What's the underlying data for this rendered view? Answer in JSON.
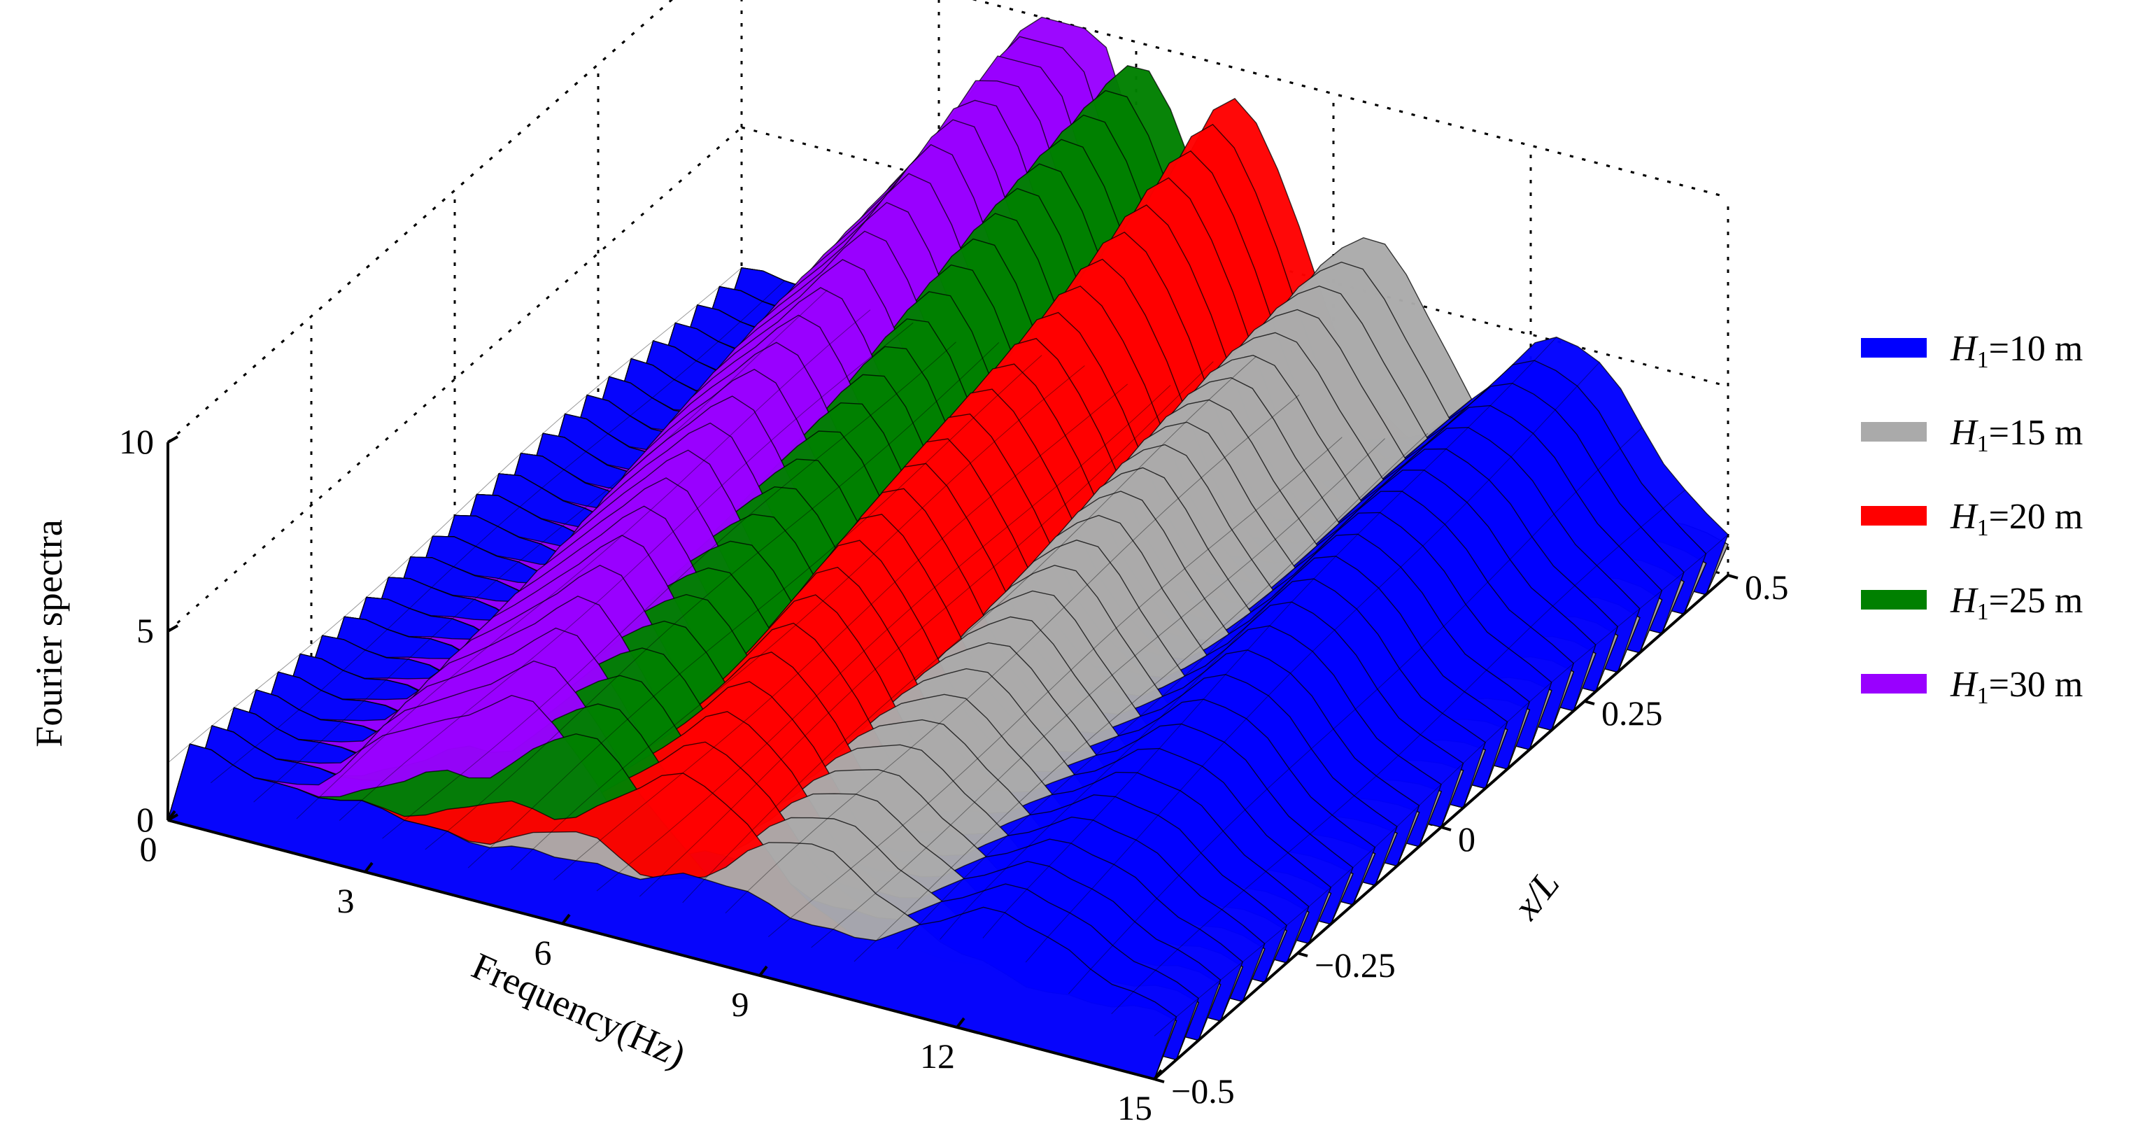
{
  "chart_data": {
    "type": "surface3d",
    "zlabel": "Fourier spectra",
    "xlabel": "Frequency(Hz)",
    "ylabel": "x/L",
    "x_range": [
      0,
      15
    ],
    "y_range": [
      -0.5,
      0.5
    ],
    "z_range": [
      0,
      10
    ],
    "x_ticks": [
      "0",
      "3",
      "6",
      "9",
      "12",
      "15"
    ],
    "y_ticks": [
      "−0.5",
      "−0.25",
      "0",
      "0.25",
      "0.5"
    ],
    "z_ticks": [
      "0",
      "5",
      "10"
    ],
    "grid": true,
    "legend_position": "right",
    "series": [
      {
        "name": "H1=10 m",
        "label_symbol": "H",
        "label_sub": "1",
        "label_rest": "=10 m",
        "color": "#0000ff",
        "peak_frequency_hz": 12.5,
        "peak_value": 4.2
      },
      {
        "name": "H1=15 m",
        "label_symbol": "H",
        "label_sub": "1",
        "label_rest": "=15 m",
        "color": "#aaaaaa",
        "peak_frequency_hz": 9.5,
        "peak_value": 5.5
      },
      {
        "name": "H1=20 m",
        "label_symbol": "H",
        "label_sub": "1",
        "label_rest": "=20 m",
        "color": "#ff0000",
        "peak_frequency_hz": 7.5,
        "peak_value": 8.0
      },
      {
        "name": "H1=25 m",
        "label_symbol": "H",
        "label_sub": "1",
        "label_rest": "=25 m",
        "color": "#008000",
        "peak_frequency_hz": 6.0,
        "peak_value": 8.5
      },
      {
        "name": "H1=30 m",
        "label_symbol": "H",
        "label_sub": "1",
        "label_rest": "=30 m",
        "color": "#9900ff",
        "peak_frequency_hz": 5.0,
        "peak_value": 10.0
      }
    ]
  }
}
